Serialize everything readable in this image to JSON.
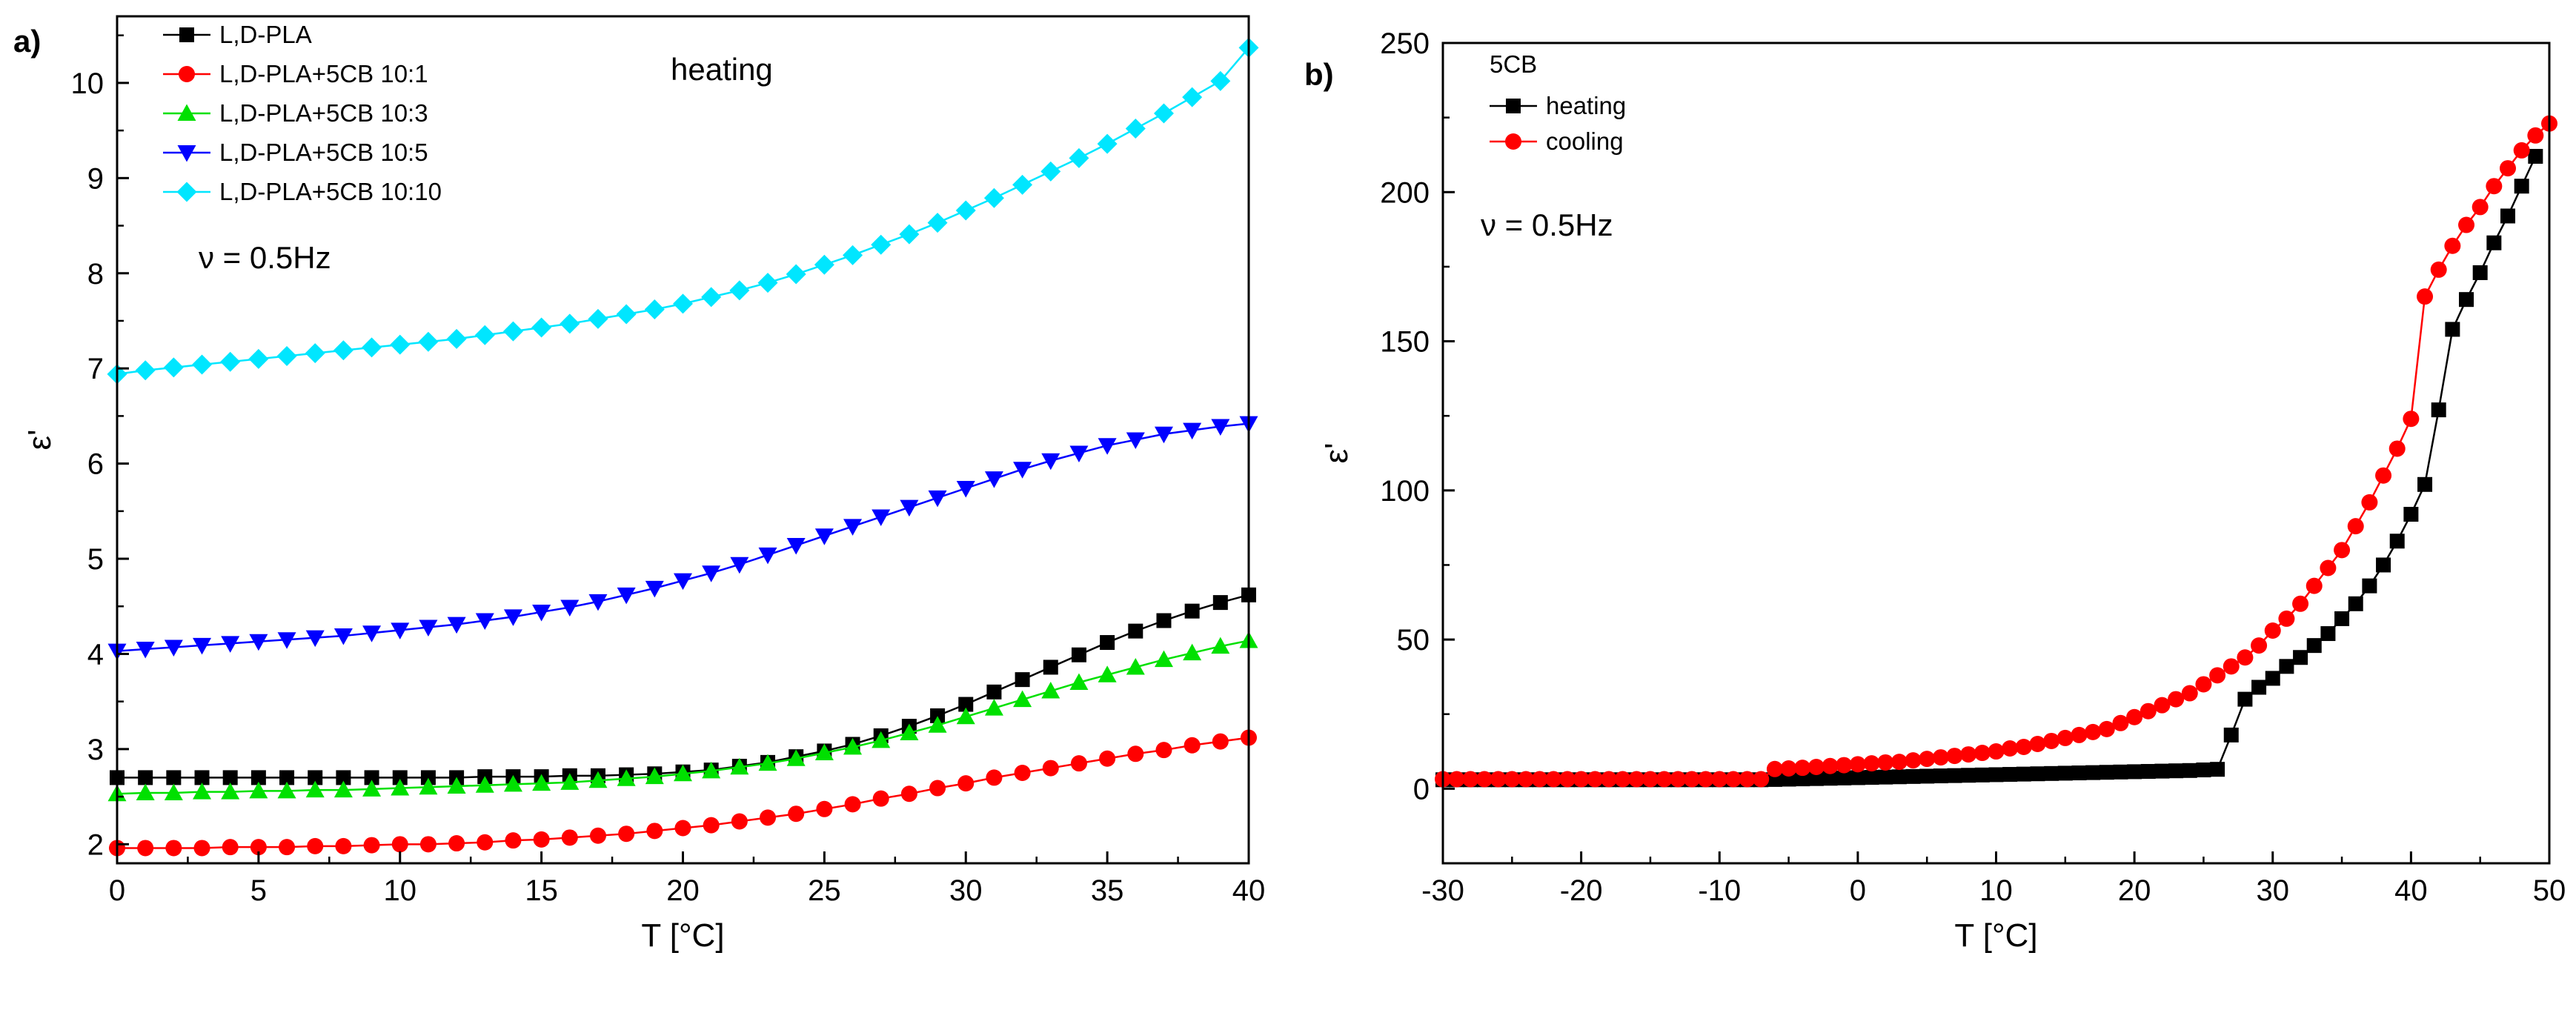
{
  "chart_data": [
    {
      "type": "scatter",
      "panel_label": "a)",
      "title": "",
      "xlabel": "T [°C]",
      "ylabel": "ε'",
      "xlim": [
        0,
        40
      ],
      "ylim": [
        1.8,
        10.7
      ],
      "xticks": [
        0,
        5,
        10,
        15,
        20,
        25,
        30,
        35,
        40
      ],
      "yticks": [
        2,
        3,
        4,
        5,
        6,
        7,
        8,
        9,
        10
      ],
      "grid": false,
      "legend_position": "top-left",
      "annotations": [
        "heating",
        "ν = 0.5Hz"
      ],
      "series": [
        {
          "name": "L,D-PLA",
          "color": "#000000",
          "marker": "square",
          "x": [
            0,
            1,
            2,
            3,
            4,
            5,
            6,
            7,
            8,
            9,
            10,
            11,
            12,
            13,
            14,
            15,
            16,
            17,
            18,
            19,
            20,
            21,
            22,
            23,
            24,
            25,
            26,
            27,
            28,
            29,
            30,
            31,
            32,
            33,
            34,
            35,
            36,
            37,
            38,
            39,
            40
          ],
          "y": [
            2.7,
            2.7,
            2.7,
            2.7,
            2.7,
            2.7,
            2.7,
            2.7,
            2.7,
            2.7,
            2.7,
            2.7,
            2.7,
            2.71,
            2.71,
            2.71,
            2.72,
            2.72,
            2.73,
            2.74,
            2.76,
            2.78,
            2.82,
            2.86,
            2.92,
            2.98,
            3.05,
            3.14,
            3.24,
            3.35,
            3.47,
            3.6,
            3.73,
            3.86,
            3.99,
            4.12,
            4.24,
            4.35,
            4.45,
            4.54,
            4.62
          ]
        },
        {
          "name": "L,D-PLA+5CB 10:1",
          "color": "#ff0000",
          "marker": "circle",
          "x": [
            0,
            1,
            2,
            3,
            4,
            5,
            6,
            7,
            8,
            9,
            10,
            11,
            12,
            13,
            14,
            15,
            16,
            17,
            18,
            19,
            20,
            21,
            22,
            23,
            24,
            25,
            26,
            27,
            28,
            29,
            30,
            31,
            32,
            33,
            34,
            35,
            36,
            37,
            38,
            39,
            40
          ],
          "y": [
            1.96,
            1.96,
            1.96,
            1.96,
            1.97,
            1.97,
            1.97,
            1.98,
            1.98,
            1.99,
            2.0,
            2.0,
            2.01,
            2.02,
            2.04,
            2.05,
            2.07,
            2.09,
            2.11,
            2.14,
            2.17,
            2.2,
            2.24,
            2.28,
            2.32,
            2.37,
            2.42,
            2.48,
            2.53,
            2.59,
            2.64,
            2.7,
            2.75,
            2.8,
            2.85,
            2.9,
            2.95,
            2.99,
            3.04,
            3.08,
            3.12
          ]
        },
        {
          "name": "L,D-PLA+5CB 10:3",
          "color": "#00e000",
          "marker": "triangle-up",
          "x": [
            0,
            1,
            2,
            3,
            4,
            5,
            6,
            7,
            8,
            9,
            10,
            11,
            12,
            13,
            14,
            15,
            16,
            17,
            18,
            19,
            20,
            21,
            22,
            23,
            24,
            25,
            26,
            27,
            28,
            29,
            30,
            31,
            32,
            33,
            34,
            35,
            36,
            37,
            38,
            39,
            40
          ],
          "y": [
            2.53,
            2.54,
            2.54,
            2.55,
            2.55,
            2.56,
            2.56,
            2.57,
            2.57,
            2.58,
            2.59,
            2.6,
            2.61,
            2.62,
            2.63,
            2.64,
            2.65,
            2.67,
            2.69,
            2.71,
            2.74,
            2.77,
            2.81,
            2.85,
            2.9,
            2.96,
            3.02,
            3.09,
            3.17,
            3.25,
            3.34,
            3.43,
            3.52,
            3.61,
            3.7,
            3.78,
            3.86,
            3.94,
            4.01,
            4.08,
            4.14
          ]
        },
        {
          "name": "L,D-PLA+5CB 10:5",
          "color": "#0000ff",
          "marker": "triangle-down",
          "x": [
            0,
            1,
            2,
            3,
            4,
            5,
            6,
            7,
            8,
            9,
            10,
            11,
            12,
            13,
            14,
            15,
            16,
            17,
            18,
            19,
            20,
            21,
            22,
            23,
            24,
            25,
            26,
            27,
            28,
            29,
            30,
            31,
            32,
            33,
            34,
            35,
            36,
            37,
            38,
            39,
            40
          ],
          "y": [
            4.03,
            4.05,
            4.07,
            4.09,
            4.11,
            4.13,
            4.15,
            4.17,
            4.19,
            4.22,
            4.25,
            4.28,
            4.31,
            4.35,
            4.39,
            4.44,
            4.49,
            4.55,
            4.62,
            4.69,
            4.77,
            4.85,
            4.94,
            5.04,
            5.14,
            5.24,
            5.34,
            5.44,
            5.54,
            5.64,
            5.74,
            5.84,
            5.94,
            6.03,
            6.11,
            6.19,
            6.25,
            6.31,
            6.35,
            6.39,
            6.42
          ]
        },
        {
          "name": "L,D-PLA+5CB 10:10",
          "color": "#00e6ff",
          "marker": "diamond",
          "x": [
            0,
            1,
            2,
            3,
            4,
            5,
            6,
            7,
            8,
            9,
            10,
            11,
            12,
            13,
            14,
            15,
            16,
            17,
            18,
            19,
            20,
            21,
            22,
            23,
            24,
            25,
            26,
            27,
            28,
            29,
            30,
            31,
            32,
            33,
            34,
            35,
            36,
            37,
            38,
            39,
            40
          ],
          "y": [
            6.94,
            6.98,
            7.01,
            7.04,
            7.07,
            7.1,
            7.13,
            7.16,
            7.19,
            7.22,
            7.25,
            7.28,
            7.31,
            7.35,
            7.39,
            7.43,
            7.47,
            7.52,
            7.57,
            7.62,
            7.68,
            7.75,
            7.82,
            7.9,
            7.99,
            8.09,
            8.19,
            8.3,
            8.41,
            8.53,
            8.66,
            8.79,
            8.93,
            9.07,
            9.21,
            9.36,
            9.52,
            9.68,
            9.85,
            10.02,
            10.37
          ]
        }
      ]
    },
    {
      "type": "scatter",
      "panel_label": "b)",
      "title": "",
      "xlabel": "T [°C]",
      "ylabel": "ε'",
      "xlim": [
        -30,
        50
      ],
      "ylim": [
        -25,
        250
      ],
      "xticks": [
        -30,
        -20,
        -10,
        0,
        10,
        20,
        30,
        40,
        50
      ],
      "yticks": [
        0,
        50,
        100,
        150,
        200,
        250
      ],
      "grid": false,
      "legend_title": "5CB",
      "legend_position": "top-left",
      "annotations": [
        "ν = 0.5Hz"
      ],
      "series": [
        {
          "name": "heating",
          "color": "#000000",
          "marker": "square",
          "x": [
            -30,
            -29,
            -28,
            -27,
            -26,
            -25,
            -24,
            -23,
            -22,
            -21,
            -20,
            -19,
            -18,
            -17,
            -16,
            -15,
            -14,
            -13,
            -12,
            -11,
            -10,
            -9,
            -8,
            -7,
            -6,
            -5,
            -4,
            -3,
            -2,
            -1,
            0,
            1,
            2,
            3,
            4,
            5,
            6,
            7,
            8,
            9,
            10,
            11,
            12,
            13,
            14,
            15,
            16,
            17,
            18,
            19,
            20,
            21,
            22,
            23,
            24,
            25,
            26,
            27,
            28,
            29,
            30,
            31,
            32,
            33,
            34,
            35,
            36,
            37,
            38,
            39,
            40,
            41,
            42,
            43,
            44,
            45,
            46,
            47,
            48,
            49
          ],
          "y": [
            3.0,
            3.0,
            3.0,
            3.0,
            3.0,
            3.0,
            3.0,
            3.0,
            3.0,
            3.0,
            3.0,
            3.0,
            3.0,
            3.0,
            3.0,
            3.0,
            3.0,
            3.0,
            3.0,
            3.0,
            3.0,
            3.0,
            3.0,
            3.0,
            3.1,
            3.2,
            3.3,
            3.4,
            3.5,
            3.6,
            3.7,
            3.8,
            3.9,
            4.0,
            4.1,
            4.2,
            4.3,
            4.4,
            4.5,
            4.6,
            4.7,
            4.8,
            4.9,
            5.0,
            5.1,
            5.2,
            5.3,
            5.4,
            5.5,
            5.6,
            5.7,
            5.8,
            5.9,
            6.0,
            6.1,
            6.3,
            6.5,
            18,
            30,
            34,
            37,
            41,
            44,
            48,
            52,
            57,
            62,
            68,
            75,
            83,
            92,
            102,
            127,
            154,
            164,
            173,
            183,
            192,
            202,
            212
          ]
        },
        {
          "name": "cooling",
          "color": "#ff0000",
          "marker": "circle",
          "x": [
            50,
            49,
            48,
            47,
            46,
            45,
            44,
            43,
            42,
            41,
            40,
            39,
            38,
            37,
            36,
            35,
            34,
            33,
            32,
            31,
            30,
            29,
            28,
            27,
            26,
            25,
            24,
            23,
            22,
            21,
            20,
            19,
            18,
            17,
            16,
            15,
            14,
            13,
            12,
            11,
            10,
            9,
            8,
            7,
            6,
            5,
            4,
            3,
            2,
            1,
            0,
            -1,
            -2,
            -3,
            -4,
            -5,
            -6,
            -7,
            -8,
            -9,
            -10,
            -11,
            -12,
            -13,
            -14,
            -15,
            -16,
            -17,
            -18,
            -19,
            -20,
            -21,
            -22,
            -23,
            -24,
            -25,
            -26,
            -27,
            -28,
            -29,
            -30
          ],
          "y": [
            223,
            219,
            214,
            208,
            202,
            195,
            189,
            182,
            174,
            165,
            124,
            114,
            105,
            96,
            88,
            80,
            74,
            68,
            62,
            57,
            53,
            48,
            44,
            41,
            38,
            35,
            32,
            30,
            28,
            26,
            24,
            22,
            20,
            19,
            18,
            17,
            16,
            15,
            14,
            13.5,
            12.5,
            12,
            11.5,
            11,
            10.5,
            10,
            9.5,
            9,
            8.8,
            8.5,
            8.2,
            7.9,
            7.6,
            7.3,
            7.0,
            6.8,
            6.6,
            3.2,
            3.2,
            3.2,
            3.2,
            3.2,
            3.2,
            3.2,
            3.2,
            3.2,
            3.2,
            3.2,
            3.2,
            3.2,
            3.2,
            3.2,
            3.2,
            3.2,
            3.2,
            3.2,
            3.2,
            3.2,
            3.2,
            3.2,
            3.2
          ]
        }
      ]
    }
  ]
}
